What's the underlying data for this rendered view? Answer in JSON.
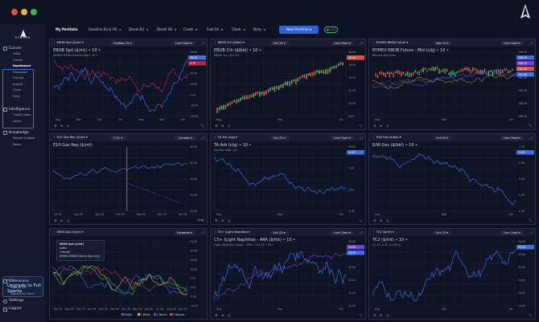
{
  "window": {
    "traffic_lights": [
      "#e0523f",
      "#e8b33a",
      "#43b34a"
    ],
    "brand_icon": "sparta-logo-icon"
  },
  "sidebar": {
    "logo_text": "SPARTA",
    "sections": [
      {
        "label": "Curves",
        "icon": "curves-icon",
        "items": [
          {
            "label": "Table"
          },
          {
            "label": "Charts"
          },
          {
            "label": "Dashboard",
            "active": true
          },
          {
            "label": "Seasonals"
          },
          {
            "label": "Futures"
          },
          {
            "label": "Insight"
          },
          {
            "label": "Clean"
          },
          {
            "label": "Dirty"
          }
        ]
      },
      {
        "label": "Intelligence",
        "icon": "intelligence-icon",
        "items": [
          {
            "label": "Global index"
          },
          {
            "label": "Alerts"
          }
        ]
      },
      {
        "label": "Knowledge",
        "icon": "knowledge-icon",
        "items": [
          {
            "label": "Market Outlook"
          },
          {
            "label": "News"
          }
        ]
      }
    ],
    "upgrade": {
      "small": "Sparta",
      "big": "Upgrade to Full Sparta"
    },
    "bottom": [
      {
        "label": "Extensions",
        "icon": "extensions-icon"
      },
      {
        "label": "Sparta API",
        "icon": ""
      },
      {
        "label": "Sparta for Excel",
        "icon": ""
      },
      {
        "label": "Settings",
        "icon": "gear-icon"
      },
      {
        "label": "Logout",
        "icon": "logout-icon"
      }
    ]
  },
  "tabs": [
    {
      "label": "My Portfolio",
      "active": true
    },
    {
      "label": "Gasoline EU & US"
    },
    {
      "label": "Diesel EU"
    },
    {
      "label": "Diesel US"
    },
    {
      "label": "Crude"
    },
    {
      "label": "Fuel Oil"
    },
    {
      "label": "Clean"
    },
    {
      "label": "Dirty"
    }
  ],
  "new_portfolio_label": "New Portfolio",
  "live_label": "Live",
  "panels": [
    {
      "header": "EBOB Spd ($/mt)",
      "date": "Oct/Nov 25",
      "mode": "Live Chart",
      "title": "EBOB Spd ($/mt) • 10 •",
      "sub": "NYMEX RBOB Futures Spd • 10 •",
      "y_ticks": [
        "40.00",
        "30.00",
        "20.00",
        "10.00",
        "0.00",
        "-10.00",
        "-20.00"
      ],
      "x_ticks": [
        "Aug",
        "Sep",
        "Jun",
        "Jul",
        "Aug",
        "Sep",
        "Oct"
      ],
      "badges": [
        {
          "text": "28.00",
          "color": "#3d6ee8"
        },
        {
          "text": "4.75",
          "color": "#b3264a"
        }
      ]
    },
    {
      "header": "EBOB Crk ($/bbl)",
      "date": "Oct 25",
      "mode": "Live Chart",
      "title": "EBOB Crk ($/bbl) • 10 •",
      "sub": "EBOB Crk / Oct 25 ...",
      "y_ticks": [
        "18.00",
        "16.00",
        "14.00",
        "12.00",
        "10.00",
        "8.00"
      ],
      "x_ticks": [
        "Aug",
        "Sep",
        "Oct"
      ],
      "badges": [
        {
          "text": "16.32",
          "color": "#e0523f"
        }
      ]
    },
    {
      "header": "NYMEX RBOB Future",
      "date": "Nov 25",
      "mode": "Live Chart",
      "title": "NYMEX RBOB Future - Mid (c/g) • 10 •",
      "sub": "Moving Avg lines",
      "y_ticks": [
        "196.00",
        "194.00",
        "192.00",
        "190.00",
        "188.00",
        "186.00"
      ],
      "x_ticks": [
        "Aug",
        "Sep",
        "Oct"
      ],
      "badges": [
        {
          "text": "198.42",
          "color": "#3d6ee8"
        },
        {
          "text": "196.32",
          "color": "#7a3fd1"
        },
        {
          "text": "194.10",
          "color": "#e0523f"
        },
        {
          "text": "192.88",
          "color": "#3d6ee8"
        }
      ]
    },
    {
      "header": "E10 Gas Rep ($/mt)",
      "date": "C 01",
      "mode": "Combos",
      "title": "E10 Gas Rep ($/mt)",
      "sub": "",
      "y_ticks": [
        "60.00",
        "50.00",
        "40.00",
        "30.00",
        "20.00"
      ],
      "x_ticks": [
        "Jul 25",
        "Aug 25",
        "Sep 25",
        "Oct 25",
        "Nov 25",
        "Dec 25",
        "Jan 26"
      ],
      "badges": [],
      "footer_label": "Spot"
    },
    {
      "header": "TA Arb (c/g)",
      "date": "Oct 25",
      "mode": "Live Chart",
      "title": "TA Arb (c/g) • 10 •",
      "sub": "Spread close 10Y",
      "y_ticks": [
        "10.00",
        "5.00",
        "0.00",
        "-5.00"
      ],
      "x_ticks": [
        "Aug",
        "Sep",
        "Oct"
      ],
      "badges": [
        {
          "text": "-4.43",
          "color": "#3d6ee8"
        }
      ]
    },
    {
      "header": "E/W Gas ($/bbl)",
      "date": "Oct 25",
      "mode": "Live Chart",
      "title": "E/W Gas ($/bbl) • 10 •",
      "sub": "",
      "y_ticks": [
        "-1.00",
        "-2.00",
        "-3.00",
        "-4.00",
        "-5.00"
      ],
      "x_ticks": [
        "Aug",
        "Sep",
        "Oct"
      ],
      "badges": [
        {
          "text": "-5.00",
          "color": "#3d6ee8"
        }
      ]
    },
    {
      "header": "EBOB Spd ($/mt)",
      "date": "",
      "mode": "Forwards",
      "title": "",
      "sub": "",
      "y_ticks": [
        "25.00",
        "20.00",
        "15.00",
        "10.00",
        "5.00",
        "0.00",
        "-5.00",
        "-10.00"
      ],
      "x_ticks": [
        "Oct 25",
        "Nov 25",
        "Dec 25",
        "Jan 26",
        "Feb 26",
        "Mar 26",
        "Apr 26",
        "May 26",
        "Jun 26",
        "Jul 26",
        "Aug 26",
        "Sep 26"
      ],
      "badges": [],
      "legend_box": {
        "title": "EBOB Spd ($/mt)",
        "rows": [
          "Settle",
          "1 Month",
          "NYMEX RBOB Futures Spd (c/g)"
        ]
      },
      "legend": [
        "Settle",
        "1 Week",
        "1 Month",
        "3 Months"
      ]
    },
    {
      "header": "C5+ (Light Naphtha)",
      "date": "Oct 25",
      "mode": "Live Chart",
      "title": "C5+ (Light Naphtha) - ARA ($/mt) • 10 •",
      "sub": "Light Naphtha (Swap) - NOU - Oct 25 • 10 •",
      "y_ticks": [
        "35.00",
        "30.00",
        "25.00",
        "20.00",
        "15.00",
        "10.00"
      ],
      "x_ticks": [
        "Aug",
        "Sep",
        "Oct"
      ],
      "badges": [
        {
          "text": "34.00",
          "color": "#7a3fd1"
        },
        {
          "text": "18.30",
          "color": "#3d6ee8"
        }
      ]
    },
    {
      "header": "TC2 ($/mt)",
      "date": "Oct 25",
      "mode": "Live Chart",
      "title": "TC2 ($/mt) • 10 •",
      "sub": "21.29 -0.35 (-1.62%)",
      "y_ticks": [
        "24.00",
        "22.00",
        "20.00",
        "18.00",
        "16.00",
        "14.00"
      ],
      "x_ticks": [
        "Aug",
        "Sep",
        "Oct"
      ],
      "badges": [
        {
          "text": "21.29",
          "color": "#3d6ee8"
        }
      ]
    }
  ]
}
